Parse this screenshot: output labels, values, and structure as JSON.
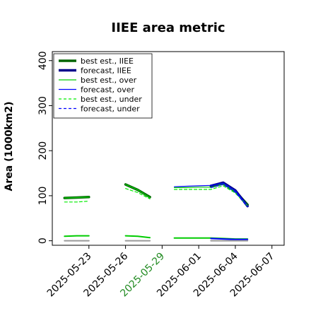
{
  "chart_data": {
    "type": "line",
    "title": "IIEE area metric",
    "ylabel": "Area (1000km2)",
    "xlabel": "",
    "ylim": [
      -10,
      420
    ],
    "xlim": [
      "2025-05-20",
      "2025-06-08"
    ],
    "grid": false,
    "legend_position": "top-left",
    "yticks": [
      0,
      100,
      200,
      300,
      400
    ],
    "xticks": [
      "2025-05-23",
      "2025-05-26",
      "2025-05-29",
      "2025-06-01",
      "2025-06-04",
      "2025-06-07"
    ],
    "highlighted_xtick": "2025-05-29",
    "highlight_color": "#228b22",
    "series": [
      {
        "name": "best est., IIEE",
        "color": "#006400",
        "style": "solid",
        "weight": "thick",
        "x": [
          "2025-05-21",
          "2025-05-22",
          "2025-05-23",
          "2025-05-24",
          "2025-05-25",
          "2025-05-26",
          "2025-05-27",
          "2025-05-28",
          "2025-05-29",
          "2025-05-30",
          "2025-05-31",
          "2025-06-01",
          "2025-06-02",
          "2025-06-03",
          "2025-06-04",
          "2025-06-05",
          "2025-06-06"
        ],
        "y": [
          95,
          96,
          97,
          null,
          null,
          125,
          113,
          97,
          null,
          null,
          null,
          null,
          120,
          127,
          110,
          80,
          null
        ]
      },
      {
        "name": "forecast, IIEE",
        "color": "#00008b",
        "style": "solid",
        "weight": "thick",
        "x": [
          "2025-05-21",
          "2025-05-22",
          "2025-05-23",
          "2025-05-24",
          "2025-05-25",
          "2025-05-26",
          "2025-05-27",
          "2025-05-28",
          "2025-05-29",
          "2025-05-30",
          "2025-05-31",
          "2025-06-01",
          "2025-06-02",
          "2025-06-03",
          "2025-06-04",
          "2025-06-05",
          "2025-06-06"
        ],
        "y": [
          null,
          null,
          null,
          null,
          null,
          null,
          null,
          null,
          null,
          null,
          null,
          null,
          122,
          129,
          112,
          77,
          null
        ]
      },
      {
        "name": "best est., over",
        "color": "#00cc00",
        "style": "solid",
        "weight": "thin",
        "x": [
          "2025-05-21",
          "2025-05-22",
          "2025-05-23",
          "2025-05-24",
          "2025-05-25",
          "2025-05-26",
          "2025-05-27",
          "2025-05-28",
          "2025-05-29",
          "2025-05-30",
          "2025-05-31",
          "2025-06-01",
          "2025-06-02",
          "2025-06-03",
          "2025-06-04",
          "2025-06-05",
          "2025-06-06"
        ],
        "y": [
          95,
          96,
          97,
          null,
          null,
          125,
          113,
          96,
          null,
          118,
          118,
          119,
          119,
          126,
          109,
          78,
          null
        ]
      },
      {
        "name": "forecast, over",
        "color": "#0000ff",
        "style": "solid",
        "weight": "thin",
        "x": [
          "2025-05-21",
          "2025-05-22",
          "2025-05-23",
          "2025-05-24",
          "2025-05-25",
          "2025-05-26",
          "2025-05-27",
          "2025-05-28",
          "2025-05-29",
          "2025-05-30",
          "2025-05-31",
          "2025-06-01",
          "2025-06-02",
          "2025-06-03",
          "2025-06-04",
          "2025-06-05",
          "2025-06-06"
        ],
        "y": [
          null,
          null,
          null,
          null,
          null,
          null,
          null,
          null,
          null,
          120,
          121,
          122,
          123,
          128,
          111,
          77,
          null
        ]
      },
      {
        "name": "best est., under",
        "color": "#00ee00",
        "style": "dashed",
        "weight": "thin",
        "x": [
          "2025-05-21",
          "2025-05-22",
          "2025-05-23",
          "2025-05-24",
          "2025-05-25",
          "2025-05-26",
          "2025-05-27",
          "2025-05-28",
          "2025-05-29",
          "2025-05-30",
          "2025-05-31",
          "2025-06-01",
          "2025-06-02",
          "2025-06-03",
          "2025-06-04",
          "2025-06-05",
          "2025-06-06"
        ],
        "y": [
          86,
          86,
          88,
          null,
          null,
          116,
          107,
          93,
          null,
          114,
          114,
          114,
          114,
          122,
          106,
          77,
          null
        ]
      },
      {
        "name": "forecast, under",
        "color": "#0000ff",
        "style": "dashed",
        "weight": "thin",
        "x": [
          "2025-05-21",
          "2025-05-22",
          "2025-05-23",
          "2025-05-24",
          "2025-05-25",
          "2025-05-26",
          "2025-05-27",
          "2025-05-28",
          "2025-05-29",
          "2025-05-30",
          "2025-05-31",
          "2025-06-01",
          "2025-06-02",
          "2025-06-03",
          "2025-06-04",
          "2025-06-05",
          "2025-06-06"
        ],
        "y": [
          null,
          null,
          null,
          null,
          null,
          null,
          null,
          null,
          null,
          null,
          null,
          null,
          118,
          125,
          108,
          76,
          null
        ]
      },
      {
        "name": "",
        "color": "#00cc00",
        "style": "solid",
        "weight": "medium",
        "x": [
          "2025-05-21",
          "2025-05-22",
          "2025-05-23",
          "2025-05-24",
          "2025-05-25",
          "2025-05-26",
          "2025-05-27",
          "2025-05-28",
          "2025-05-29",
          "2025-05-30",
          "2025-05-31",
          "2025-06-01",
          "2025-06-02",
          "2025-06-03",
          "2025-06-04",
          "2025-06-05",
          "2025-06-06"
        ],
        "y": [
          10,
          11,
          11,
          null,
          null,
          11,
          10,
          7,
          null,
          6,
          6,
          6,
          6,
          5,
          4,
          4,
          null
        ]
      },
      {
        "name": "",
        "color": "#0000ff",
        "style": "solid",
        "weight": "medium",
        "x": [
          "2025-05-21",
          "2025-05-22",
          "2025-05-23",
          "2025-05-24",
          "2025-05-25",
          "2025-05-26",
          "2025-05-27",
          "2025-05-28",
          "2025-05-29",
          "2025-05-30",
          "2025-05-31",
          "2025-06-01",
          "2025-06-02",
          "2025-06-03",
          "2025-06-04",
          "2025-06-05",
          "2025-06-06"
        ],
        "y": [
          null,
          null,
          null,
          null,
          null,
          null,
          null,
          null,
          null,
          null,
          null,
          null,
          5,
          4,
          3,
          3,
          null
        ]
      },
      {
        "name": "",
        "color": "#999999",
        "style": "solid",
        "weight": "medium",
        "x": [
          "2025-05-21",
          "2025-05-22",
          "2025-05-23",
          "2025-05-24",
          "2025-05-25",
          "2025-05-26",
          "2025-05-27",
          "2025-05-28",
          "2025-05-29",
          "2025-05-30",
          "2025-05-31",
          "2025-06-01",
          "2025-06-02",
          "2025-06-03",
          "2025-06-04",
          "2025-06-05",
          "2025-06-06"
        ],
        "y": [
          0,
          0,
          0,
          null,
          null,
          0,
          0,
          0,
          null,
          null,
          null,
          null,
          0,
          0,
          0,
          0,
          null
        ]
      }
    ]
  }
}
